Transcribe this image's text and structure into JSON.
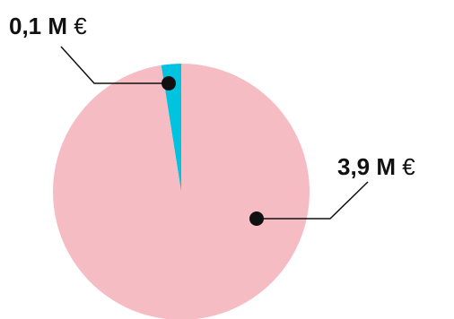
{
  "chart_data": {
    "type": "pie",
    "title": "",
    "slices": [
      {
        "label": "0,1 M",
        "unit": "€",
        "value": 0.1,
        "color": "#00c3e0"
      },
      {
        "label": "3,9 M",
        "unit": "€",
        "value": 3.9,
        "color": "#f6bcc3"
      }
    ]
  }
}
